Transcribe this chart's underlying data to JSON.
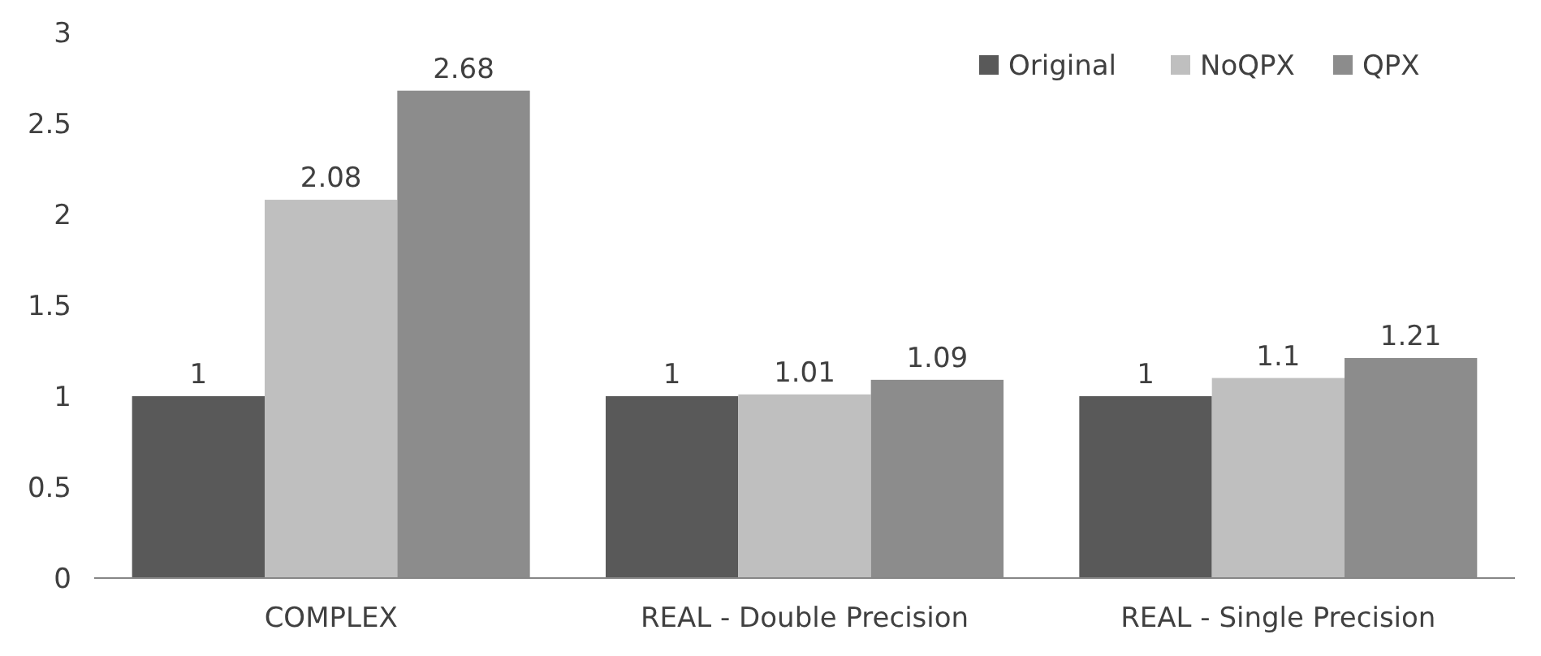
{
  "chart_data": {
    "type": "bar",
    "categories": [
      "COMPLEX",
      "REAL - Double Precision",
      "REAL - Single Precision"
    ],
    "series": [
      {
        "name": "Original",
        "color": "#595959",
        "values": [
          1,
          1,
          1
        ]
      },
      {
        "name": "NoQPX",
        "color": "#bfbfbf",
        "values": [
          2.08,
          1.01,
          1.1
        ]
      },
      {
        "name": "QPX",
        "color": "#8c8c8c",
        "values": [
          2.68,
          1.09,
          1.21
        ]
      }
    ],
    "ylim": [
      0,
      3
    ],
    "yticks": [
      0,
      0.5,
      1,
      1.5,
      2,
      2.5,
      3
    ],
    "grid": false,
    "legend": "top right",
    "data_labels": true
  }
}
